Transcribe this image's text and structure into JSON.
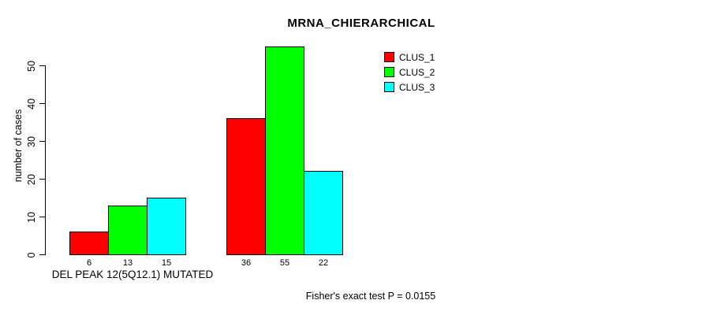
{
  "chart_data": {
    "type": "bar",
    "title": "MRNA_CHIERARCHICAL",
    "ylabel": "number of cases",
    "xlabel": "",
    "yticks": [
      0,
      10,
      20,
      30,
      40,
      50
    ],
    "ylim": [
      0,
      57
    ],
    "categories": [
      "DEL PEAK 12(5Q12.1) MUTATED",
      ""
    ],
    "series": [
      {
        "name": "CLUS_1",
        "color": "#FF0000",
        "values": [
          6,
          36
        ]
      },
      {
        "name": "CLUS_2",
        "color": "#00FF00",
        "values": [
          13,
          55
        ]
      },
      {
        "name": "CLUS_3",
        "color": "#00FFFF",
        "values": [
          15,
          22
        ]
      }
    ],
    "bar_value_labels": [
      [
        6,
        13,
        15
      ],
      [
        36,
        55,
        22
      ]
    ],
    "annotation": "Fisher's exact test P = 0.0155",
    "legend_position": "top-right",
    "grid": false,
    "background_color": "#FFFFFF",
    "axis_color": "#000000"
  }
}
